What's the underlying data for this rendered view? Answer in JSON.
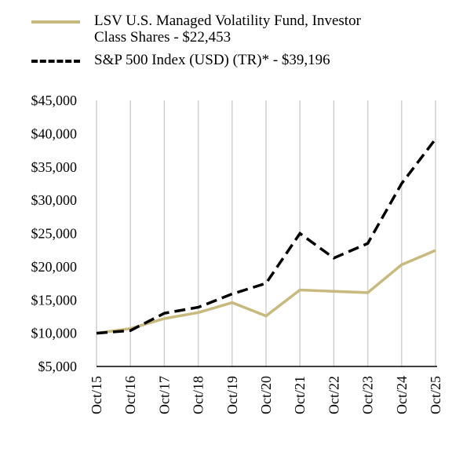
{
  "chart_data": {
    "type": "line",
    "categories": [
      "Oct/15",
      "Oct/16",
      "Oct/17",
      "Oct/18",
      "Oct/19",
      "Oct/20",
      "Oct/21",
      "Oct/22",
      "Oct/23",
      "Oct/24",
      "Oct/25"
    ],
    "series": [
      {
        "name": "LSV U.S. Managed Volatility Fund, Investor Class Shares - $22,453",
        "color": "#c8b97f",
        "dash": false,
        "values": [
          10000,
          10700,
          12200,
          13100,
          14600,
          12600,
          16500,
          16300,
          16100,
          20300,
          22453
        ]
      },
      {
        "name": "S&P 500 Index (USD) (TR)* - $39,196",
        "color": "#000000",
        "dash": true,
        "values": [
          10000,
          10400,
          13000,
          13900,
          15900,
          17500,
          25000,
          21300,
          23500,
          32500,
          39196
        ]
      }
    ],
    "ylim": [
      5000,
      45000
    ],
    "yticks": [
      {
        "value": 5000,
        "label": "$5,000"
      },
      {
        "value": 10000,
        "label": "$10,000"
      },
      {
        "value": 15000,
        "label": "$15,000"
      },
      {
        "value": 20000,
        "label": "$20,000"
      },
      {
        "value": 25000,
        "label": "$25,000"
      },
      {
        "value": 30000,
        "label": "$30,000"
      },
      {
        "value": 35000,
        "label": "$35,000"
      },
      {
        "value": 40000,
        "label": "$40,000"
      },
      {
        "value": 45000,
        "label": "$45,000"
      }
    ],
    "grid": true
  }
}
